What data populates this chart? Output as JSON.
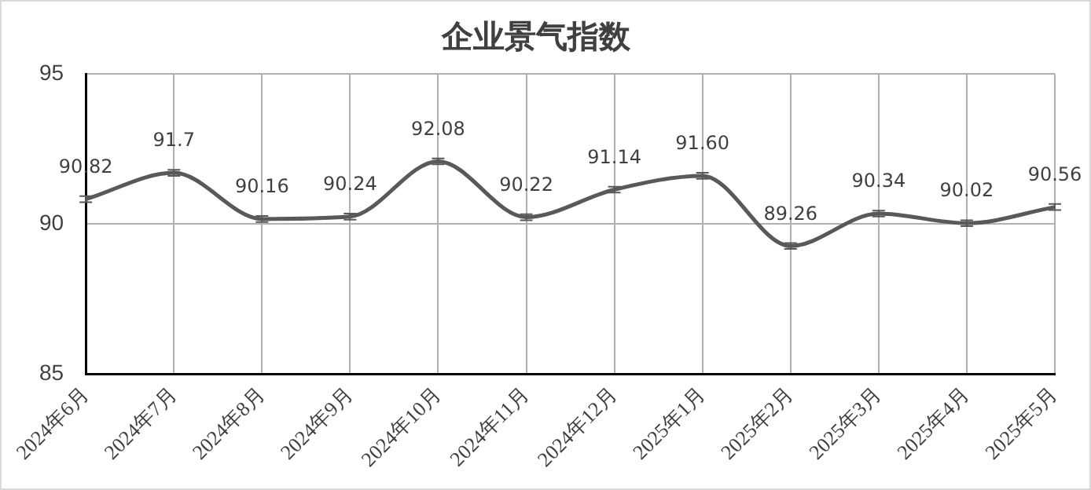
{
  "chart_data": {
    "type": "line",
    "title": "企业景气指数",
    "categories": [
      "2024年6月",
      "2024年7月",
      "2024年8月",
      "2024年9月",
      "2024年10月",
      "2024年11月",
      "2024年12月",
      "2025年1月",
      "2025年2月",
      "2025年3月",
      "2025年4月",
      "2025年5月"
    ],
    "series": [
      {
        "color": "#595959",
        "values": [
          90.82,
          91.7,
          90.16,
          90.24,
          92.08,
          90.22,
          91.14,
          91.6,
          89.26,
          90.34,
          90.02,
          90.56
        ],
        "value_labels": [
          "90.82",
          "91.7",
          "90.16",
          "90.24",
          "92.08",
          "90.22",
          "91.14",
          "91.60",
          "89.26",
          "90.34",
          "90.02",
          "90.56"
        ],
        "errors": [
          0.1,
          0.1,
          0.1,
          0.1,
          0.1,
          0.1,
          0.1,
          0.1,
          0.1,
          0.1,
          0.1,
          0.1
        ]
      }
    ],
    "ylim": [
      85,
      95
    ],
    "yticks": [
      85,
      90,
      95
    ],
    "grid": true,
    "legend": false,
    "marker": "none",
    "line_style": "solid"
  }
}
